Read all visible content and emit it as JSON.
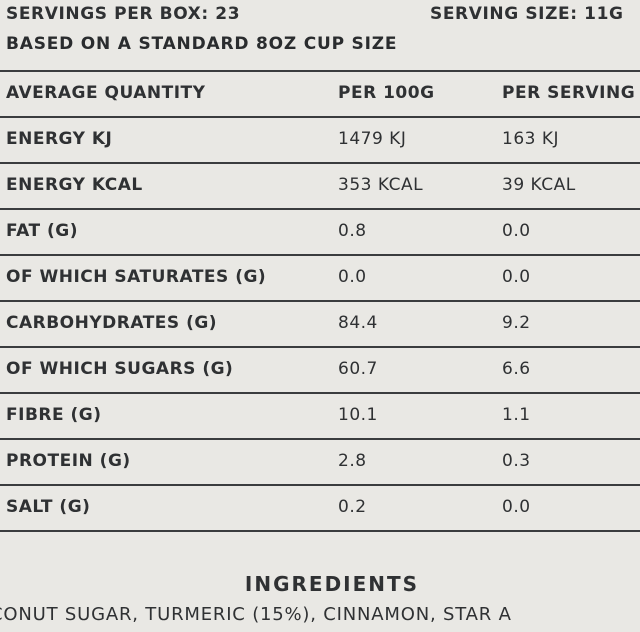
{
  "servings": {
    "per_box": "SERVINGS PER BOX: 23",
    "size": "SERVING SIZE: 11G"
  },
  "based_on": "BASED ON A STANDARD 8OZ CUP SIZE",
  "table": {
    "headers": [
      "AVERAGE QUANTITY",
      "PER 100G",
      "PER SERVING"
    ],
    "rows": [
      [
        "ENERGY KJ",
        "1479 KJ",
        "163 KJ"
      ],
      [
        "ENERGY KCAL",
        "353 KCAL",
        "39 KCAL"
      ],
      [
        "FAT (G)",
        "0.8",
        "0.0"
      ],
      [
        "OF WHICH SATURATES (G)",
        "0.0",
        "0.0"
      ],
      [
        "CARBOHYDRATES (G)",
        "84.4",
        "9.2"
      ],
      [
        "OF WHICH SUGARS (G)",
        "60.7",
        "6.6"
      ],
      [
        "FIBRE (G)",
        "10.1",
        "1.1"
      ],
      [
        "PROTEIN (G)",
        "2.8",
        "0.3"
      ],
      [
        "SALT (G)",
        "0.2",
        "0.0"
      ]
    ]
  },
  "ingredients": {
    "title": "INGREDIENTS",
    "text": "CONUT SUGAR, TURMERIC (15%), CINNAMON, STAR A"
  }
}
